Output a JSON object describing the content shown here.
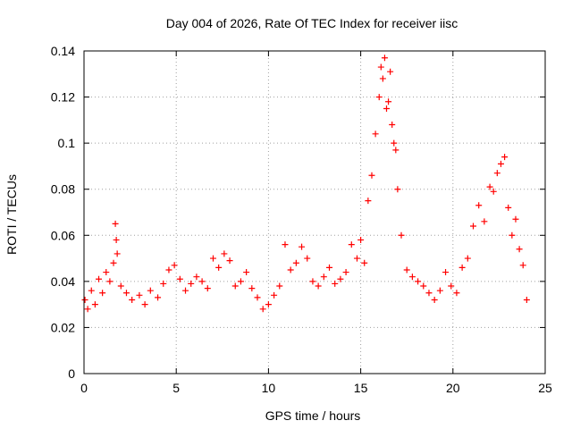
{
  "chart_data": {
    "type": "scatter",
    "title": "Day 004 of 2026, Rate Of TEC Index for receiver iisc",
    "xlabel": "GPS time / hours",
    "ylabel": "ROTI / TECUs",
    "xlim": [
      0,
      25
    ],
    "ylim": [
      0,
      0.14
    ],
    "x_ticks": [
      "0",
      "5",
      "10",
      "15",
      "20",
      "25"
    ],
    "y_ticks": [
      "0",
      "0.02",
      "0.04",
      "0.06",
      "0.08",
      "0.1",
      "0.12",
      "0.14"
    ],
    "grid": true,
    "marker": "+",
    "color": "#ff0000",
    "series": [
      {
        "x": [
          0.05,
          0.2,
          0.4,
          0.6,
          0.8,
          1.0,
          1.2,
          1.4,
          1.6,
          1.7,
          1.75,
          1.8,
          2.0,
          2.3,
          2.6,
          3.0,
          3.3,
          3.6,
          4.0,
          4.3,
          4.6,
          4.9,
          5.2,
          5.5,
          5.8,
          6.1,
          6.4,
          6.7,
          7.0,
          7.3,
          7.6,
          7.9,
          8.2,
          8.5,
          8.8,
          9.1,
          9.4,
          9.7,
          10.0,
          10.3,
          10.6,
          10.9,
          11.2,
          11.5,
          11.8,
          12.1,
          12.4,
          12.7,
          13.0,
          13.3,
          13.6,
          13.9,
          14.2,
          14.5,
          14.8,
          15.0,
          15.2,
          15.4,
          15.6,
          15.8,
          16.0,
          16.1,
          16.2,
          16.3,
          16.4,
          16.5,
          16.6,
          16.7,
          16.8,
          16.9,
          17.0,
          17.2,
          17.5,
          17.8,
          18.1,
          18.4,
          18.7,
          19.0,
          19.3,
          19.6,
          19.9,
          20.2,
          20.5,
          20.8,
          21.1,
          21.4,
          21.7,
          22.0,
          22.2,
          22.4,
          22.6,
          22.8,
          23.0,
          23.2,
          23.4,
          23.6,
          23.8,
          24.0
        ],
        "y": [
          0.032,
          0.028,
          0.036,
          0.03,
          0.041,
          0.035,
          0.044,
          0.04,
          0.048,
          0.065,
          0.058,
          0.052,
          0.038,
          0.035,
          0.032,
          0.034,
          0.03,
          0.036,
          0.033,
          0.039,
          0.045,
          0.047,
          0.041,
          0.036,
          0.039,
          0.042,
          0.04,
          0.037,
          0.05,
          0.046,
          0.052,
          0.049,
          0.038,
          0.04,
          0.044,
          0.037,
          0.033,
          0.028,
          0.03,
          0.034,
          0.038,
          0.056,
          0.045,
          0.048,
          0.055,
          0.05,
          0.04,
          0.038,
          0.042,
          0.046,
          0.039,
          0.041,
          0.044,
          0.056,
          0.05,
          0.058,
          0.048,
          0.075,
          0.086,
          0.104,
          0.12,
          0.133,
          0.128,
          0.137,
          0.115,
          0.118,
          0.131,
          0.108,
          0.1,
          0.097,
          0.08,
          0.06,
          0.045,
          0.042,
          0.04,
          0.038,
          0.035,
          0.032,
          0.036,
          0.044,
          0.038,
          0.035,
          0.046,
          0.05,
          0.064,
          0.073,
          0.066,
          0.081,
          0.079,
          0.087,
          0.091,
          0.094,
          0.072,
          0.06,
          0.067,
          0.054,
          0.047,
          0.032
        ]
      }
    ]
  }
}
